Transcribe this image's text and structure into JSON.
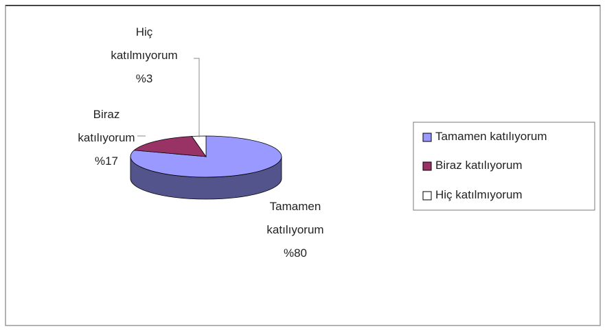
{
  "chart_data": {
    "type": "pie3d",
    "categories": [
      "Tamamen katılıyorum",
      "Biraz katılıyorum",
      "Hiç katılmıyorum"
    ],
    "values": [
      80,
      17,
      3
    ],
    "value_labels": [
      "%80",
      "%17",
      "%3"
    ],
    "colors": [
      "#9999ff",
      "#993366",
      "#ffffff"
    ],
    "legend": "right"
  }
}
